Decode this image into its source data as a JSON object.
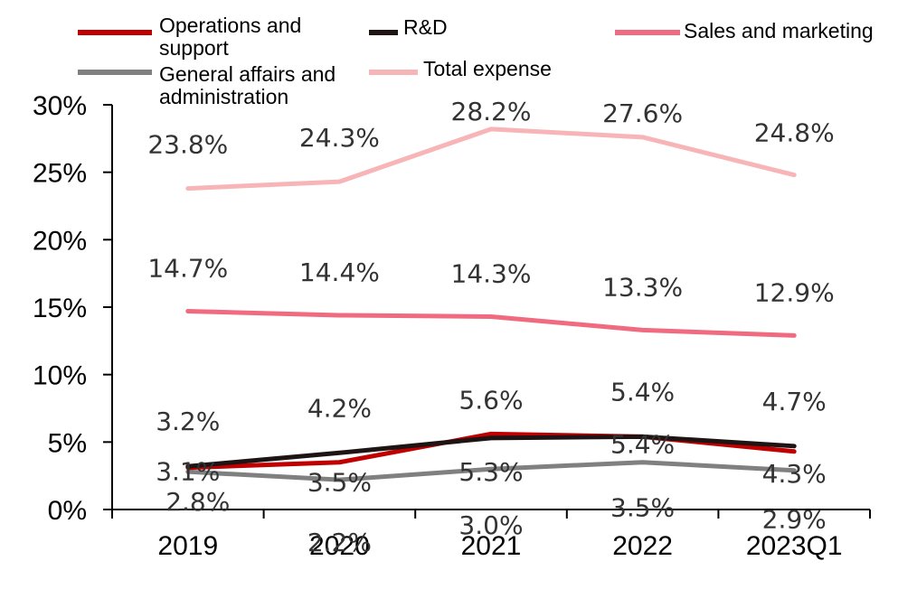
{
  "chart_data": {
    "type": "line",
    "categories": [
      "2019",
      "2020",
      "2021",
      "2022",
      "2023Q1"
    ],
    "ylim": [
      0,
      30
    ],
    "y_ticks": [
      "0%",
      "5%",
      "10%",
      "15%",
      "20%",
      "25%",
      "30%"
    ],
    "legend_position": "top",
    "grid": false,
    "series": [
      {
        "name": "Operations and support",
        "color": "#c00000",
        "values": [
          3.1,
          3.5,
          5.6,
          5.4,
          4.3
        ],
        "labels": [
          "3.1%",
          "3.5%",
          "5.6%",
          "5.4%",
          "4.3%"
        ]
      },
      {
        "name": "R&D",
        "color": "#1f1414",
        "values": [
          3.2,
          4.2,
          5.3,
          5.4,
          4.7
        ],
        "labels": [
          "3.2%",
          "4.2%",
          "5.3%",
          "5.4%",
          "4.7%"
        ]
      },
      {
        "name": "Sales and marketing",
        "color": "#f06a80",
        "values": [
          14.7,
          14.4,
          14.3,
          13.3,
          12.9
        ],
        "labels": [
          "14.7%",
          "14.4%",
          "14.3%",
          "13.3%",
          "12.9%"
        ]
      },
      {
        "name": "General affairs and administration",
        "color": "#808080",
        "values": [
          2.8,
          2.2,
          3.0,
          3.5,
          2.9
        ],
        "labels": [
          "2.8%",
          "2.2%",
          "3.0%",
          "3.5%",
          "2.9%"
        ]
      },
      {
        "name": "Total expense",
        "color": "#f7b5b8",
        "values": [
          23.8,
          24.3,
          28.2,
          27.6,
          24.8
        ],
        "labels": [
          "23.8%",
          "24.3%",
          "28.2%",
          "27.6%",
          "24.8%"
        ]
      }
    ]
  }
}
